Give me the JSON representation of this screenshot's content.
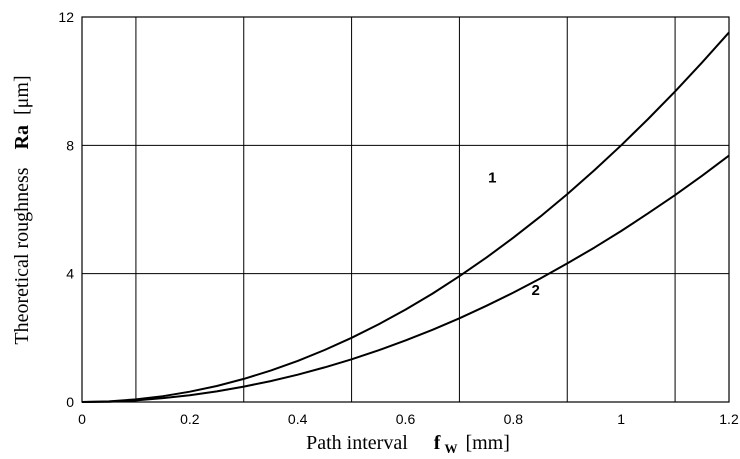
{
  "chart_data": {
    "type": "line",
    "xlabel": "Path interval",
    "xlabel_symbol": "f",
    "xlabel_subscript": "W",
    "xlabel_unit": "[mm]",
    "ylabel": "Theoretical roughness",
    "ylabel_symbol": "Ra",
    "ylabel_unit": "[μm]",
    "xlim": [
      0,
      1.2
    ],
    "ylim": [
      0,
      12
    ],
    "xticks": [
      0,
      0.2,
      0.4,
      0.6,
      0.8,
      1,
      1.2
    ],
    "xtick_labels": [
      "0",
      "0.2",
      "0.4",
      "0.6",
      "0.8",
      "1",
      "1.2"
    ],
    "yticks": [
      0,
      4,
      8,
      12
    ],
    "ytick_labels": [
      "0",
      "4",
      "8",
      "12"
    ],
    "x_gridlines": [
      0.1,
      0.3,
      0.5,
      0.7,
      0.9,
      1.1
    ],
    "y_gridlines": [
      4,
      8
    ],
    "grid": true,
    "color": "#000000",
    "series": [
      {
        "name": "1",
        "x": [
          0,
          0.05,
          0.1,
          0.15,
          0.2,
          0.25,
          0.3,
          0.35,
          0.4,
          0.45,
          0.5,
          0.55,
          0.6,
          0.65,
          0.7,
          0.75,
          0.8,
          0.85,
          0.9,
          0.95,
          1.0,
          1.05,
          1.1,
          1.15,
          1.2
        ],
        "y": [
          0,
          0.02,
          0.08,
          0.18,
          0.32,
          0.5,
          0.72,
          0.98,
          1.28,
          1.62,
          2.0,
          2.42,
          2.88,
          3.38,
          3.92,
          4.5,
          5.12,
          5.78,
          6.48,
          7.22,
          8.0,
          8.82,
          9.68,
          10.58,
          11.52
        ]
      },
      {
        "name": "2",
        "x": [
          0,
          0.05,
          0.1,
          0.15,
          0.2,
          0.25,
          0.3,
          0.35,
          0.4,
          0.45,
          0.5,
          0.55,
          0.6,
          0.65,
          0.7,
          0.75,
          0.8,
          0.85,
          0.9,
          0.95,
          1.0,
          1.05,
          1.1,
          1.15,
          1.2
        ],
        "y": [
          0,
          0.01,
          0.05,
          0.12,
          0.21,
          0.33,
          0.48,
          0.65,
          0.85,
          1.08,
          1.33,
          1.61,
          1.92,
          2.25,
          2.61,
          3.0,
          3.41,
          3.85,
          4.32,
          4.81,
          5.33,
          5.88,
          6.45,
          7.05,
          7.68
        ]
      }
    ]
  }
}
